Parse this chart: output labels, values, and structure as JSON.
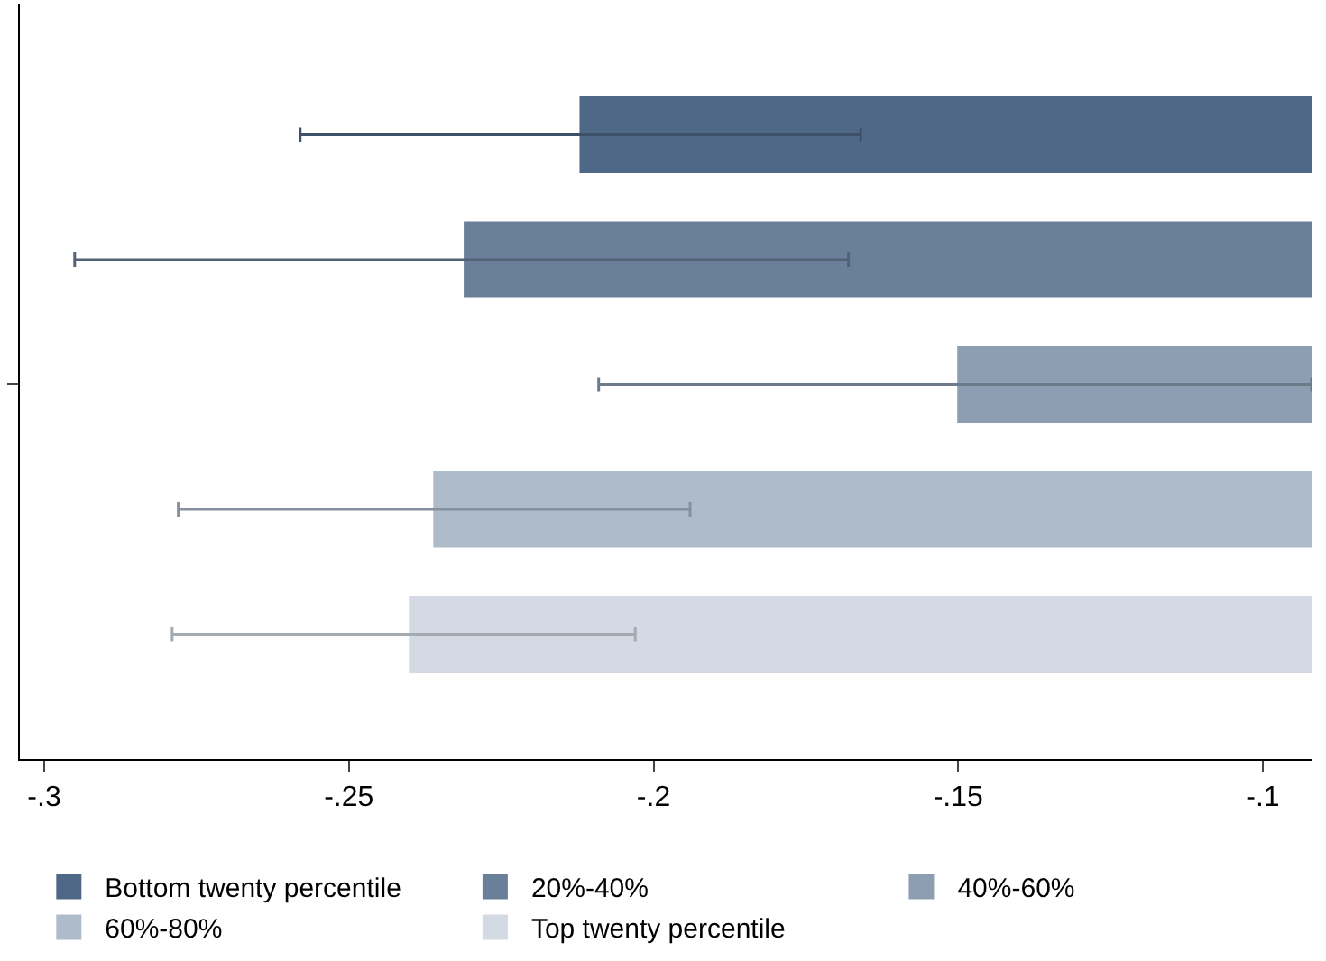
{
  "chart_data": {
    "type": "bar",
    "orientation": "horizontal",
    "categories": [
      null,
      null,
      null,
      null,
      null
    ],
    "series": [
      {
        "name": "Bottom twenty percentile",
        "color": "#4f6887",
        "values": [
          -0.212,
          null,
          null,
          null,
          null
        ],
        "errors": [
          [
            -0.258,
            -0.166
          ],
          null,
          null,
          null,
          null
        ]
      },
      {
        "name": "20%-40%",
        "color": "#6a7f99",
        "values": [
          null,
          -0.231,
          null,
          null,
          null
        ],
        "errors": [
          null,
          [
            -0.295,
            -0.168
          ],
          null,
          null,
          null
        ]
      },
      {
        "name": "40%-60%",
        "color": "#8d9db2",
        "values": [
          null,
          null,
          -0.15,
          null,
          null
        ],
        "errors": [
          null,
          null,
          [
            -0.209,
            -0.092
          ],
          null,
          null
        ]
      },
      {
        "name": "60%-80%",
        "color": "#aebbca",
        "values": [
          null,
          null,
          null,
          -0.236,
          null
        ],
        "errors": [
          null,
          null,
          null,
          [
            -0.278,
            -0.194
          ],
          null
        ]
      },
      {
        "name": "Top twenty percentile",
        "color": "#d3dae3",
        "values": [
          null,
          null,
          null,
          null,
          -0.24
        ],
        "errors": [
          null,
          null,
          null,
          null,
          [
            -0.279,
            -0.203
          ]
        ]
      }
    ],
    "xlim": [
      -0.304,
      -0.092
    ],
    "xticks": [
      {
        "value": -0.3,
        "label": "-.3"
      },
      {
        "value": -0.25,
        "label": "-.25"
      },
      {
        "value": -0.2,
        "label": "-.2"
      },
      {
        "value": -0.15,
        "label": "-.15"
      },
      {
        "value": -0.1,
        "label": "-.1"
      }
    ],
    "tick_labels": "x",
    "legend": "bottom"
  }
}
